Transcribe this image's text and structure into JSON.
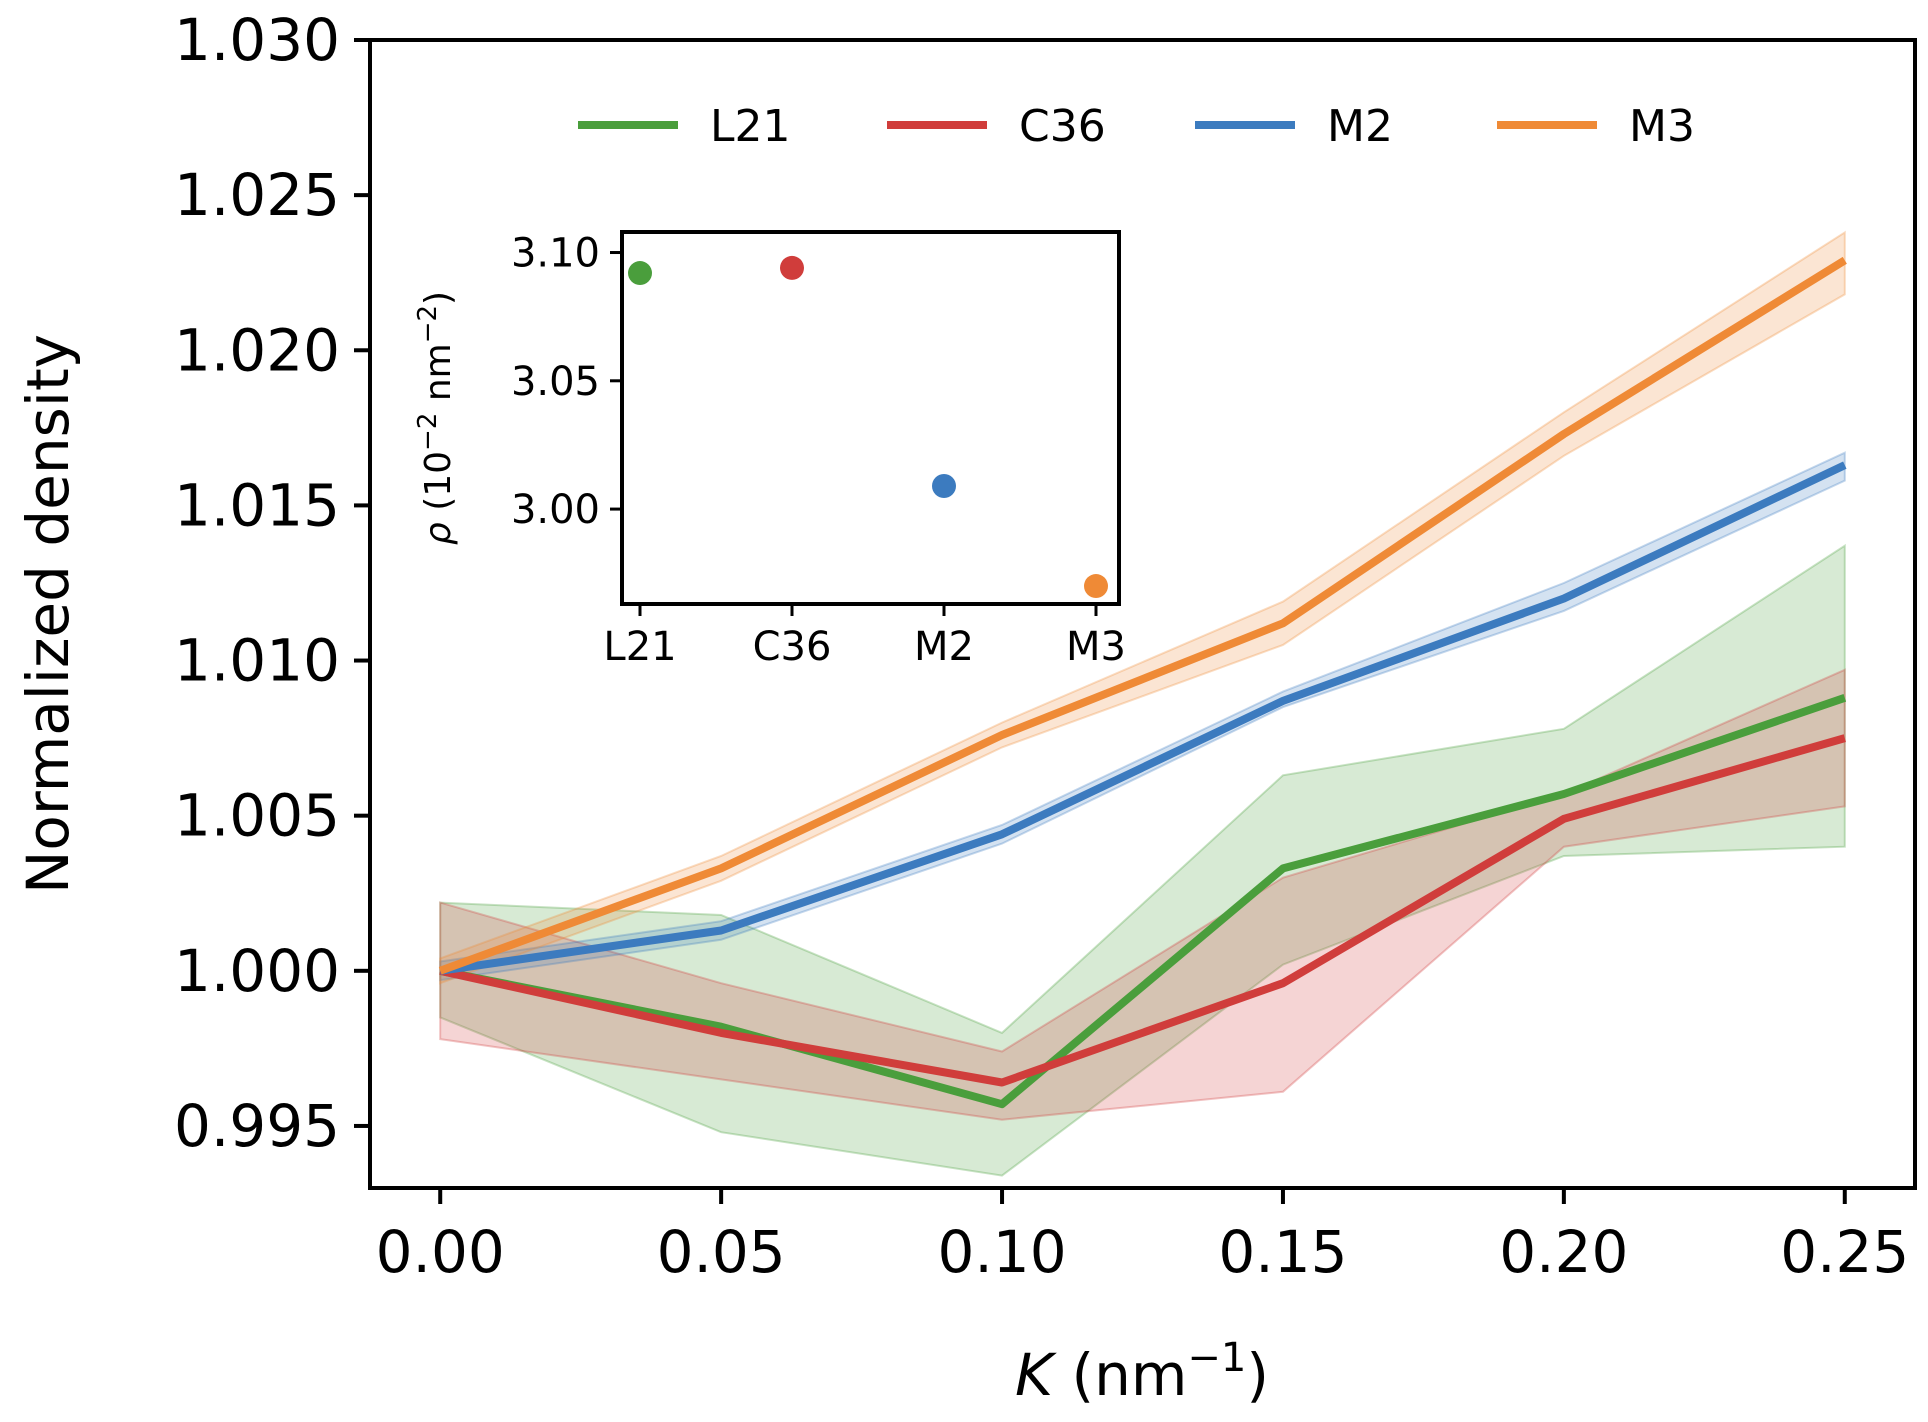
{
  "chart_data": [
    {
      "type": "line",
      "title": "",
      "xlabel": {
        "symbol": "K",
        "rest": " (nm",
        "sup": "−1",
        "close": ")"
      },
      "ylabel": "Normalized density",
      "xlim": [
        -0.0125,
        0.2625
      ],
      "ylim": [
        0.993,
        1.03
      ],
      "xticks": [
        0.0,
        0.05,
        0.1,
        0.15,
        0.2,
        0.25
      ],
      "xtick_labels": [
        "0.00",
        "0.05",
        "0.10",
        "0.15",
        "0.20",
        "0.25"
      ],
      "yticks": [
        0.995,
        1.0,
        1.005,
        1.01,
        1.015,
        1.02,
        1.025,
        1.03
      ],
      "ytick_labels": [
        "0.995",
        "1.000",
        "1.005",
        "1.010",
        "1.015",
        "1.020",
        "1.025",
        "1.030"
      ],
      "legend_position": "top-center",
      "x": [
        0.0,
        0.05,
        0.1,
        0.15,
        0.2,
        0.25
      ],
      "series": [
        {
          "name": "L21",
          "color": "#4a9e3c",
          "values": [
            1.0,
            0.9982,
            0.9957,
            1.0033,
            1.0057,
            1.0088
          ],
          "lower": [
            0.9985,
            0.9948,
            0.9934,
            1.0002,
            1.0037,
            1.004
          ],
          "upper": [
            1.0022,
            1.0018,
            0.998,
            1.0063,
            1.0078,
            1.0137
          ]
        },
        {
          "name": "C36",
          "color": "#d03d3b",
          "values": [
            1.0,
            0.998,
            0.9964,
            0.9996,
            1.0049,
            1.0075
          ],
          "lower": [
            0.9978,
            0.9965,
            0.9952,
            0.9961,
            1.004,
            1.0053
          ],
          "upper": [
            1.0022,
            0.9996,
            0.9974,
            1.003,
            1.0057,
            1.0097
          ]
        },
        {
          "name": "M2",
          "color": "#3c7bbf",
          "values": [
            1.0,
            1.0013,
            1.0044,
            1.0087,
            1.012,
            1.0163
          ],
          "lower": [
            0.9997,
            1.001,
            1.0041,
            1.0085,
            1.0116,
            1.0158
          ],
          "upper": [
            1.0003,
            1.0016,
            1.0047,
            1.009,
            1.0125,
            1.0167
          ]
        },
        {
          "name": "M3",
          "color": "#ef8a36",
          "values": [
            1.0,
            1.0033,
            1.0076,
            1.0112,
            1.0173,
            1.0229
          ],
          "lower": [
            0.9996,
            1.0029,
            1.0072,
            1.0105,
            1.0166,
            1.0218
          ],
          "upper": [
            1.0004,
            1.0037,
            1.008,
            1.0119,
            1.018,
            1.0238
          ]
        }
      ]
    },
    {
      "type": "scatter",
      "title": "",
      "xlabel": "",
      "ylabel": {
        "symbol": "ρ",
        "pre": "  (10",
        "sup1": "−2",
        "mid": " nm",
        "sup2": "−2",
        "close": ")"
      },
      "categories": [
        "L21",
        "C36",
        "M2",
        "M3"
      ],
      "ylim": [
        2.963,
        3.108
      ],
      "yticks": [
        3.0,
        3.05,
        3.1
      ],
      "ytick_labels": [
        "3.00",
        "3.05",
        "3.10"
      ],
      "points": [
        {
          "category": "L21",
          "value": 3.092,
          "err": 0.004,
          "color": "#4a9e3c"
        },
        {
          "category": "C36",
          "value": 3.094,
          "err": 0.003,
          "color": "#d03d3b"
        },
        {
          "category": "M2",
          "value": 3.009,
          "err": 0.0015,
          "color": "#3c7bbf"
        },
        {
          "category": "M3",
          "value": 2.97,
          "err": 0.0015,
          "color": "#ef8a36"
        }
      ]
    }
  ]
}
